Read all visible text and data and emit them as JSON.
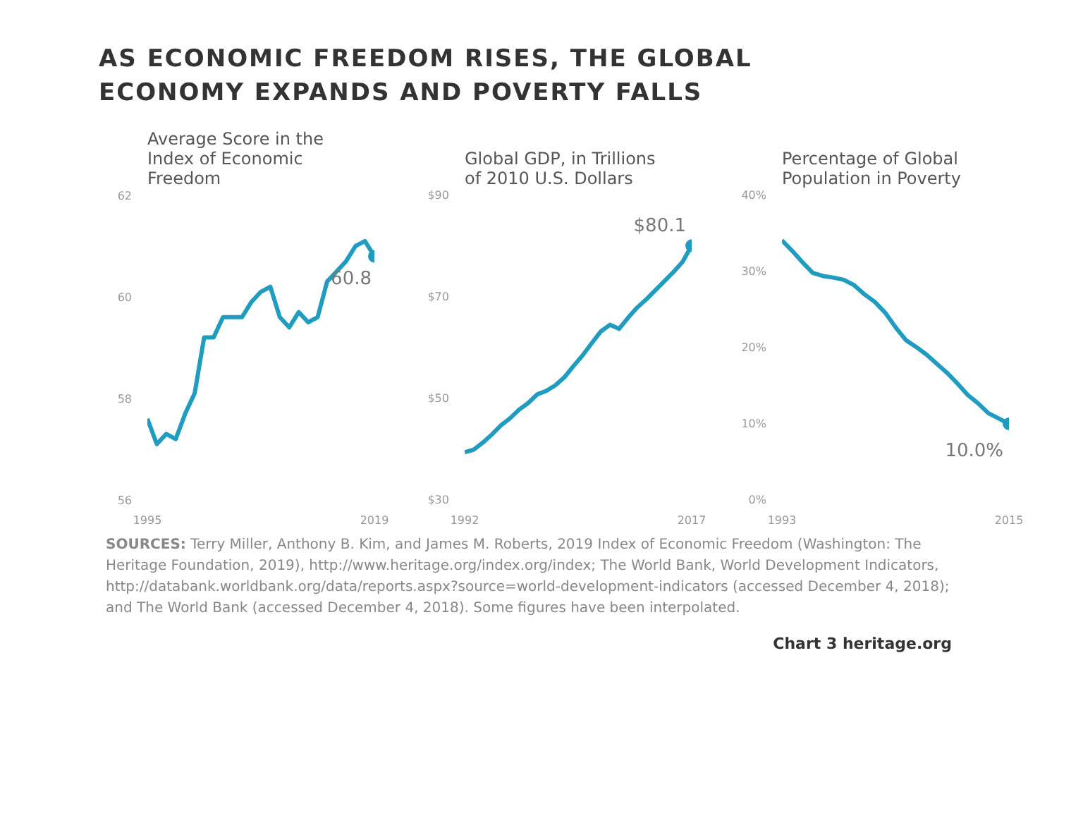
{
  "chart_data": [
    {
      "type": "line",
      "title": "AS ECONOMIC FREEDOM RISES, THE GLOBAL ECONOMY EXPANDS AND POVERTY FALLS",
      "subtitle": "Average Score in the Index of Economic Freedom",
      "x": [
        1995,
        1996,
        1997,
        1998,
        1999,
        2000,
        2001,
        2002,
        2003,
        2004,
        2005,
        2006,
        2007,
        2008,
        2009,
        2010,
        2011,
        2012,
        2013,
        2014,
        2015,
        2016,
        2017,
        2018,
        2019
      ],
      "series": [
        {
          "color": "#1f9cc0",
          "values": [
            57.6,
            57.1,
            57.3,
            57.2,
            57.7,
            58.1,
            59.2,
            59.2,
            59.6,
            59.6,
            59.6,
            59.9,
            60.1,
            60.2,
            59.6,
            59.4,
            59.7,
            59.5,
            59.6,
            60.3,
            60.5,
            60.7,
            61.0,
            61.1,
            60.8
          ]
        }
      ],
      "xlim": [
        1995,
        2019
      ],
      "xticks": [
        1995,
        2019
      ],
      "ylim": [
        56,
        62
      ],
      "yticks": [
        56,
        58,
        60,
        62
      ],
      "grid": false,
      "annotations": [
        {
          "text": "60.8",
          "x": 2019,
          "y": 60.8
        }
      ]
    },
    {
      "type": "line",
      "title": "Global GDP, in Trillions of 2010 U.S. Dollars",
      "x": [
        1992,
        1993,
        1994,
        1995,
        1996,
        1997,
        1998,
        1999,
        2000,
        2001,
        2002,
        2003,
        2004,
        2005,
        2006,
        2007,
        2008,
        2009,
        2010,
        2011,
        2012,
        2013,
        2014,
        2015,
        2016,
        2017
      ],
      "series": [
        {
          "color": "#1f9cc0",
          "values": [
            39.4,
            39.9,
            41.3,
            42.9,
            44.7,
            46.1,
            47.8,
            49.1,
            50.8,
            51.5,
            52.6,
            54.2,
            56.4,
            58.5,
            60.9,
            63.2,
            64.5,
            63.7,
            65.9,
            67.9,
            69.5,
            71.3,
            73.1,
            74.9,
            76.9,
            80.1
          ]
        }
      ],
      "xlim": [
        1992,
        2017
      ],
      "xticks": [
        1992,
        2017
      ],
      "ylim": [
        30,
        90
      ],
      "yticks": [
        {
          "value": 30,
          "label": "$30"
        },
        {
          "value": 50,
          "label": "$50"
        },
        {
          "value": 70,
          "label": "$70"
        },
        {
          "value": 90,
          "label": "$90"
        }
      ],
      "grid": false,
      "annotations": [
        {
          "text": "$80.1",
          "x": 2017,
          "y": 80.1
        }
      ]
    },
    {
      "type": "line",
      "title": "Percentage of Global Population in Poverty",
      "x": [
        1993,
        1994,
        1995,
        1996,
        1997,
        1998,
        1999,
        2000,
        2001,
        2002,
        2003,
        2004,
        2005,
        2006,
        2007,
        2008,
        2009,
        2010,
        2011,
        2012,
        2013,
        2014,
        2015
      ],
      "series": [
        {
          "color": "#1f9cc0",
          "values": [
            34.1,
            32.7,
            31.2,
            29.8,
            29.4,
            29.2,
            28.9,
            28.2,
            27.0,
            26.0,
            24.6,
            22.7,
            21.0,
            20.1,
            19.1,
            17.9,
            16.7,
            15.3,
            13.8,
            12.7,
            11.4,
            10.7,
            10.0
          ]
        }
      ],
      "xlim": [
        1993,
        2015
      ],
      "xticks": [
        1993,
        2015
      ],
      "ylim": [
        0,
        40
      ],
      "yticks": [
        {
          "value": 0,
          "label": "0%"
        },
        {
          "value": 10,
          "label": "10%"
        },
        {
          "value": 20,
          "label": "20%"
        },
        {
          "value": 30,
          "label": "30%"
        },
        {
          "value": 40,
          "label": "40%"
        }
      ],
      "grid": false,
      "annotations": [
        {
          "text": "10.0%",
          "x": 2015,
          "y": 10.0
        },
        "SOURCES: Terry Miller, Anthony B. Kim, and James M. Roberts, 2019 Index of Economic Freedom (Washington: The Heritage Foundation, 2019), http://www.heritage.org/index.org/index; The World Bank, World Development Indicators, http://databank.worldbank.org/data/reports.aspx?source=world-development-indicators (accessed December 4, 2018); and The World Bank (accessed December 4, 2018). Some figures have been interpolated.",
        "Chart 3 heritage.org"
      ]
    }
  ]
}
